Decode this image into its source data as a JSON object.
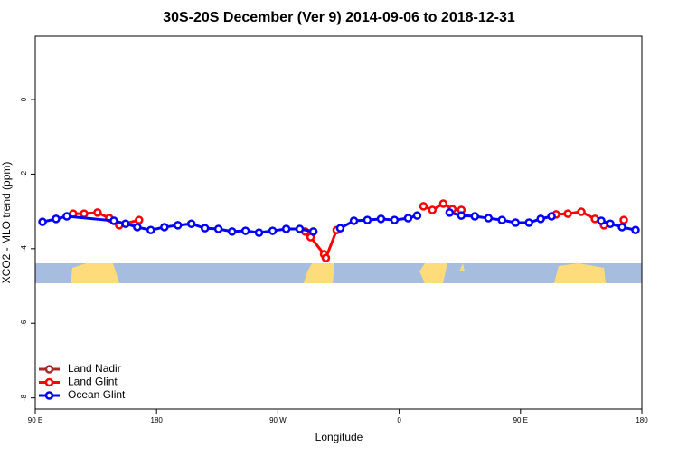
{
  "chart_data": {
    "type": "line",
    "title": "30S-20S December (Ver 9)   2014-09-06 to 2018-12-31",
    "x_label": "Longitude",
    "y_label": "XCO2 - MLO trend (ppm)",
    "xlim": [
      90,
      540
    ],
    "xticks": [
      {
        "value": 90,
        "label": "90 E"
      },
      {
        "value": 180,
        "label": "180"
      },
      {
        "value": 270,
        "label": "90 W"
      },
      {
        "value": 360,
        "label": "0"
      },
      {
        "value": 450,
        "label": "90 E"
      },
      {
        "value": 540,
        "label": "180"
      }
    ],
    "ylim": [
      -8.3,
      1.7
    ],
    "yticks": [
      -8,
      -6,
      -4,
      -2,
      0
    ],
    "legend": "bottomleft",
    "series": [
      {
        "name": "Land Nadir",
        "color": "#a52a2a",
        "x": [],
        "values": []
      },
      {
        "name": "Land Glint",
        "color": "#ff0000",
        "x": [
          118.1,
          126.2,
          136.2,
          144.9,
          152.3,
          167.0,
          228,
          290.3,
          294.3,
          304.3,
          305.6,
          313.6,
          345,
          378,
          384.6,
          392.7,
          399.4,
          406.1,
          440,
          476.4,
          485.1,
          495.1,
          505.2,
          511.9,
          519,
          526.6
        ],
        "values": [
          -3.06,
          -3.06,
          -3.03,
          -3.18,
          -3.37,
          -3.23,
          null,
          -3.54,
          -3.69,
          -4.15,
          -4.25,
          -3.5,
          null,
          -2.86,
          -2.96,
          -2.79,
          -2.94,
          -2.96,
          null,
          -3.08,
          -3.06,
          -3.01,
          -3.2,
          -3.37,
          null,
          -3.23
        ]
      },
      {
        "name": "Ocean Glint",
        "color": "#0000ff",
        "x": [
          95.4,
          105.4,
          113.4,
          148.3,
          157,
          165.7,
          175.7,
          185.8,
          195.8,
          205.8,
          215.9,
          225.9,
          236,
          246,
          256,
          266.1,
          276.2,
          286.2,
          296.3,
          306,
          316.3,
          326.4,
          336.4,
          346.5,
          356.5,
          366.6,
          373.3,
          385,
          397.4,
          406.1,
          416.1,
          426.2,
          436.2,
          446.3,
          456.3,
          465,
          473,
          490,
          509.9,
          516.6,
          525.3,
          535.3
        ],
        "values": [
          -3.28,
          -3.2,
          -3.13,
          -3.25,
          -3.33,
          -3.42,
          -3.5,
          -3.42,
          -3.37,
          -3.33,
          -3.45,
          -3.47,
          -3.54,
          -3.52,
          -3.57,
          -3.52,
          -3.47,
          -3.47,
          -3.54,
          null,
          -3.45,
          -3.25,
          -3.23,
          -3.2,
          -3.23,
          -3.18,
          -3.11,
          null,
          -3.03,
          -3.11,
          -3.13,
          -3.18,
          -3.23,
          -3.3,
          -3.3,
          -3.2,
          -3.13,
          null,
          -3.25,
          -3.33,
          -3.42,
          -3.5
        ]
      }
    ]
  }
}
